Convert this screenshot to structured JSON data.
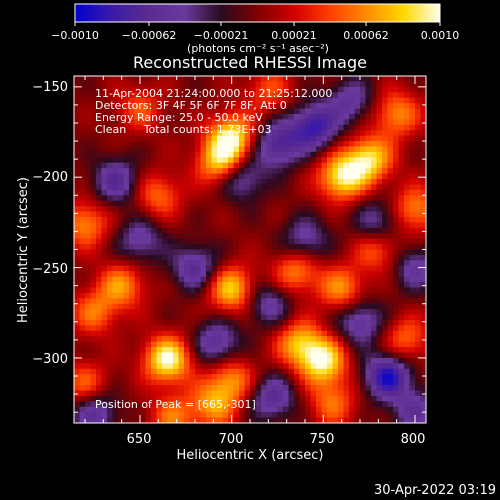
{
  "title": "Reconstructed RHESSI Image",
  "timestamp": "30-Apr-2022 03:19",
  "colorbar": {
    "tick_labels": [
      "−0.0010",
      "−0.00062",
      "−0.00021",
      "0.00021",
      "0.00062",
      "0.0010"
    ],
    "range": [
      -0.001,
      0.001
    ],
    "unit_label": "(photons cm⁻² s⁻¹ asec⁻²)"
  },
  "annotations": {
    "time_range": "11-Apr-2004 21:24:00.000 to 21:25:12.000",
    "detectors": "Detectors: 3F 4F 5F 6F 7F 8F, Att 0",
    "energy_range": "Energy Range: 25.0 - 50.0 keV",
    "method_counts": "Clean     Total counts: 1.73E+03",
    "peak": "Position of Peak = [665,-301]"
  },
  "colors": {
    "background": "#000000",
    "foreground": "#ffffff",
    "colormap": [
      "#0000d0",
      "#3c1aa8",
      "#5a2b8e",
      "#6a3aa0",
      "#2a0a20",
      "#800000",
      "#d00000",
      "#ff4000",
      "#ff8c00",
      "#ffd700",
      "#fffff0"
    ]
  },
  "chart_data": {
    "type": "heatmap",
    "title": "Reconstructed RHESSI Image",
    "xlabel": "Heliocentric X (arcsec)",
    "ylabel": "Heliocentric Y (arcsec)",
    "xlim": [
      614,
      806
    ],
    "ylim": [
      -336,
      -144
    ],
    "x_ticks": [
      650,
      700,
      750,
      800
    ],
    "y_ticks": [
      -150,
      -200,
      -250,
      -300
    ],
    "value_range": [
      -0.001,
      0.001
    ],
    "peak_position": [
      665,
      -301
    ],
    "blobs": [
      {
        "x": 665,
        "y": -301,
        "v": 0.001
      },
      {
        "x": 700,
        "y": -178,
        "v": 0.0009
      },
      {
        "x": 694,
        "y": -192,
        "v": 0.0008
      },
      {
        "x": 760,
        "y": -200,
        "v": 0.0009
      },
      {
        "x": 775,
        "y": -190,
        "v": 0.00085
      },
      {
        "x": 700,
        "y": -262,
        "v": 0.0008
      },
      {
        "x": 750,
        "y": -302,
        "v": 0.0009
      },
      {
        "x": 737,
        "y": -292,
        "v": 0.0007
      },
      {
        "x": 700,
        "y": -312,
        "v": 0.0006
      },
      {
        "x": 690,
        "y": -326,
        "v": 0.0006
      },
      {
        "x": 735,
        "y": -252,
        "v": 0.0006
      },
      {
        "x": 760,
        "y": -262,
        "v": 0.0006
      },
      {
        "x": 780,
        "y": -240,
        "v": 0.0005
      },
      {
        "x": 620,
        "y": -226,
        "v": 0.0006
      },
      {
        "x": 625,
        "y": -275,
        "v": 0.0005
      },
      {
        "x": 640,
        "y": -260,
        "v": 0.0006
      },
      {
        "x": 660,
        "y": -210,
        "v": 0.0005
      },
      {
        "x": 650,
        "y": -162,
        "v": 0.0004
      },
      {
        "x": 720,
        "y": -152,
        "v": 0.0004
      },
      {
        "x": 790,
        "y": -165,
        "v": 0.0006
      },
      {
        "x": 800,
        "y": -218,
        "v": 0.0006
      },
      {
        "x": 795,
        "y": -290,
        "v": 0.0005
      },
      {
        "x": 620,
        "y": -315,
        "v": 0.0005
      },
      {
        "x": 668,
        "y": -333,
        "v": 0.0005
      },
      {
        "x": 755,
        "y": -325,
        "v": 0.0005
      },
      {
        "x": 680,
        "y": -250,
        "v": -0.0006
      },
      {
        "x": 745,
        "y": -172,
        "v": -0.0008
      },
      {
        "x": 725,
        "y": -182,
        "v": -0.0007
      },
      {
        "x": 637,
        "y": -202,
        "v": -0.0006
      },
      {
        "x": 705,
        "y": -200,
        "v": -0.0006
      },
      {
        "x": 785,
        "y": -310,
        "v": -0.0009
      },
      {
        "x": 625,
        "y": -330,
        "v": -0.0006
      },
      {
        "x": 692,
        "y": -292,
        "v": -0.0006
      },
      {
        "x": 722,
        "y": -322,
        "v": -0.0006
      },
      {
        "x": 770,
        "y": -280,
        "v": -0.0006
      },
      {
        "x": 765,
        "y": -158,
        "v": -0.0005
      },
      {
        "x": 650,
        "y": -235,
        "v": -0.0005
      },
      {
        "x": 740,
        "y": -235,
        "v": -0.0005
      },
      {
        "x": 720,
        "y": -270,
        "v": -0.0005
      },
      {
        "x": 800,
        "y": -330,
        "v": -0.0005
      },
      {
        "x": 780,
        "y": -225,
        "v": -0.0005
      },
      {
        "x": 800,
        "y": -250,
        "v": -0.0005
      }
    ]
  }
}
